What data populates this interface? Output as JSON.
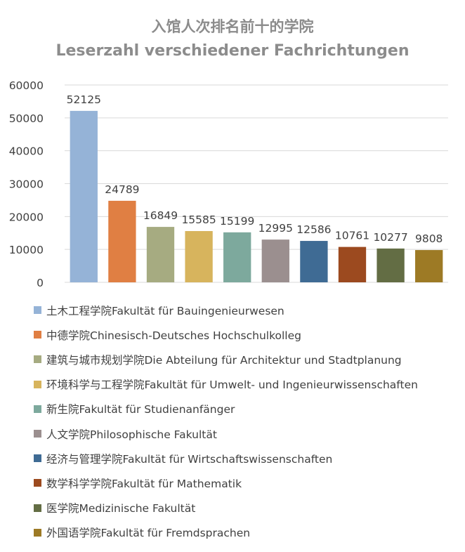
{
  "chart_data": {
    "type": "bar",
    "title": "入馆人次排名前十的学院",
    "subtitle": "Leserzahl verschiedener Fachrichtungen",
    "xlabel": "",
    "ylabel": "",
    "ylim": [
      0,
      60000
    ],
    "yticks": [
      0,
      10000,
      20000,
      30000,
      40000,
      50000,
      60000
    ],
    "grid": true,
    "legend_position": "bottom",
    "categories": [
      "土木工程学院Fakultät für Bauingenieurwesen",
      "中德学院Chinesisch-Deutsches Hochschulkolleg",
      "建筑与城市规划学院Die Abteilung für Architektur und Stadtplanung",
      "环境科学与工程学院Fakultät für Umwelt- und Ingenieurwissenschaften",
      "新生院Fakultät für Studienanfänger",
      "人文学院Philosophische Fakultät",
      "经济与管理学院Fakultät für Wirtschaftswissenschaften",
      "数学科学学院Fakultät für Mathematik",
      "医学院Medizinische Fakultät",
      "外国语学院Fakultät für Fremdsprachen"
    ],
    "values": [
      52125,
      24789,
      16849,
      15585,
      15199,
      12995,
      12586,
      10761,
      10277,
      9808
    ],
    "colors": [
      "#95b3d7",
      "#e07f43",
      "#a6ab81",
      "#d7b45d",
      "#7da99d",
      "#9b8f8f",
      "#3f6b94",
      "#9c4a1f",
      "#636d44",
      "#9d7a25"
    ]
  }
}
